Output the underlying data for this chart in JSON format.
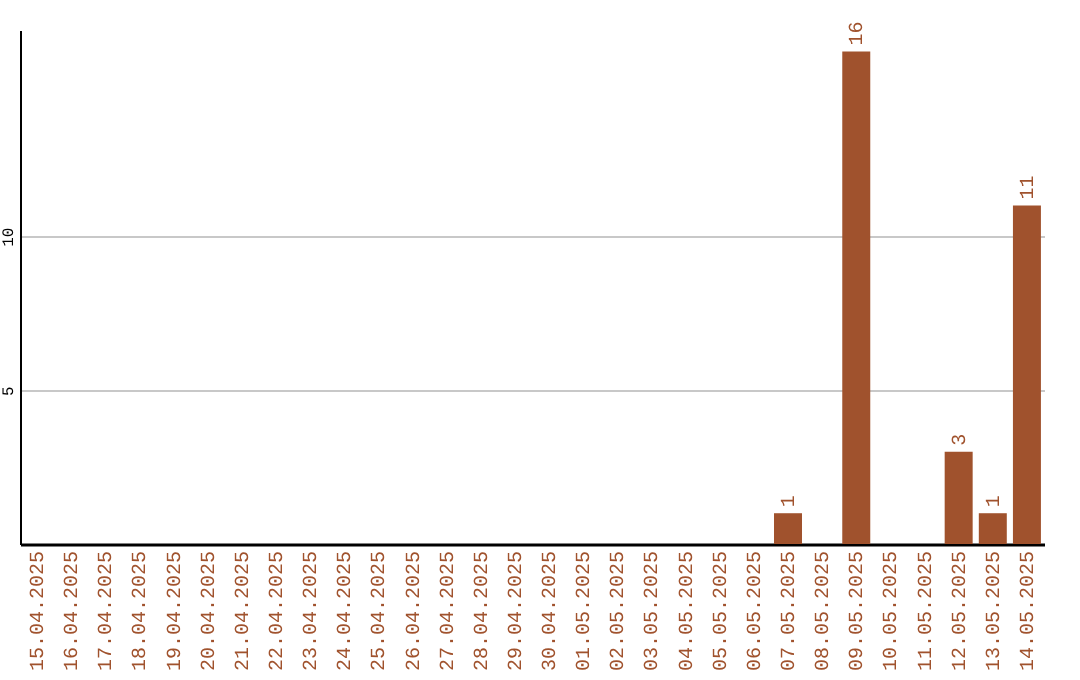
{
  "chart_data": {
    "type": "bar",
    "categories": [
      "15.04.2025",
      "16.04.2025",
      "17.04.2025",
      "18.04.2025",
      "19.04.2025",
      "20.04.2025",
      "21.04.2025",
      "22.04.2025",
      "23.04.2025",
      "24.04.2025",
      "25.04.2025",
      "26.04.2025",
      "27.04.2025",
      "28.04.2025",
      "29.04.2025",
      "30.04.2025",
      "01.05.2025",
      "02.05.2025",
      "03.05.2025",
      "04.05.2025",
      "05.05.2025",
      "06.05.2025",
      "07.05.2025",
      "08.05.2025",
      "09.05.2025",
      "10.05.2025",
      "11.05.2025",
      "12.05.2025",
      "13.05.2025",
      "14.05.2025"
    ],
    "values": [
      0,
      0,
      0,
      0,
      0,
      0,
      0,
      0,
      0,
      0,
      0,
      0,
      0,
      0,
      0,
      0,
      0,
      0,
      0,
      0,
      0,
      0,
      1,
      0,
      16,
      0,
      0,
      3,
      1,
      11
    ],
    "value_labels": [
      null,
      null,
      null,
      null,
      null,
      null,
      null,
      null,
      null,
      null,
      null,
      null,
      null,
      null,
      null,
      null,
      null,
      null,
      null,
      null,
      null,
      null,
      "1",
      null,
      "16",
      null,
      null,
      "3",
      "1",
      "11"
    ],
    "color": "#a0522d",
    "ylim": [
      0,
      16.7
    ],
    "yticks": [
      5,
      10
    ],
    "grid": "y"
  }
}
